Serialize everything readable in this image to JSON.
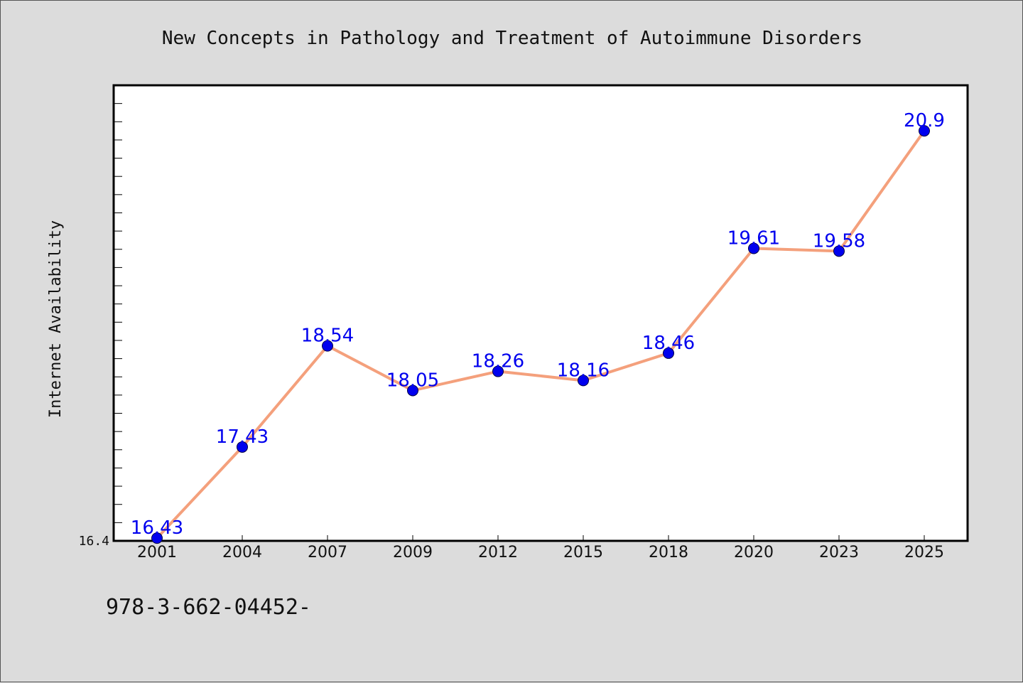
{
  "chart_data": {
    "type": "line",
    "title": "New Concepts in Pathology and Treatment of Autoimmune Disorders",
    "xlabel": "",
    "ylabel": "Internet Availability",
    "categories": [
      "2001",
      "2004",
      "2007",
      "2009",
      "2012",
      "2015",
      "2018",
      "2020",
      "2023",
      "2025"
    ],
    "series": [
      {
        "values": [
          16.43,
          17.43,
          18.54,
          18.05,
          18.26,
          18.16,
          18.46,
          19.61,
          19.58,
          20.9
        ]
      }
    ],
    "data_labels": [
      "16.43",
      "17.43",
      "18.54",
      "18.05",
      "18.26",
      "18.16",
      "18.46",
      "19.61",
      "19.58",
      "20.9"
    ],
    "ylim": [
      16.4,
      21.4
    ],
    "y_tick_label": "16.4",
    "grid": false,
    "legend": "none"
  },
  "footer_text": "978-3-662-04452-",
  "colors": {
    "background": "#dcdcdc",
    "plot_background": "#ffffff",
    "line": "#f4a07c",
    "marker": "#0000ee",
    "data_label": "#0000ee"
  }
}
